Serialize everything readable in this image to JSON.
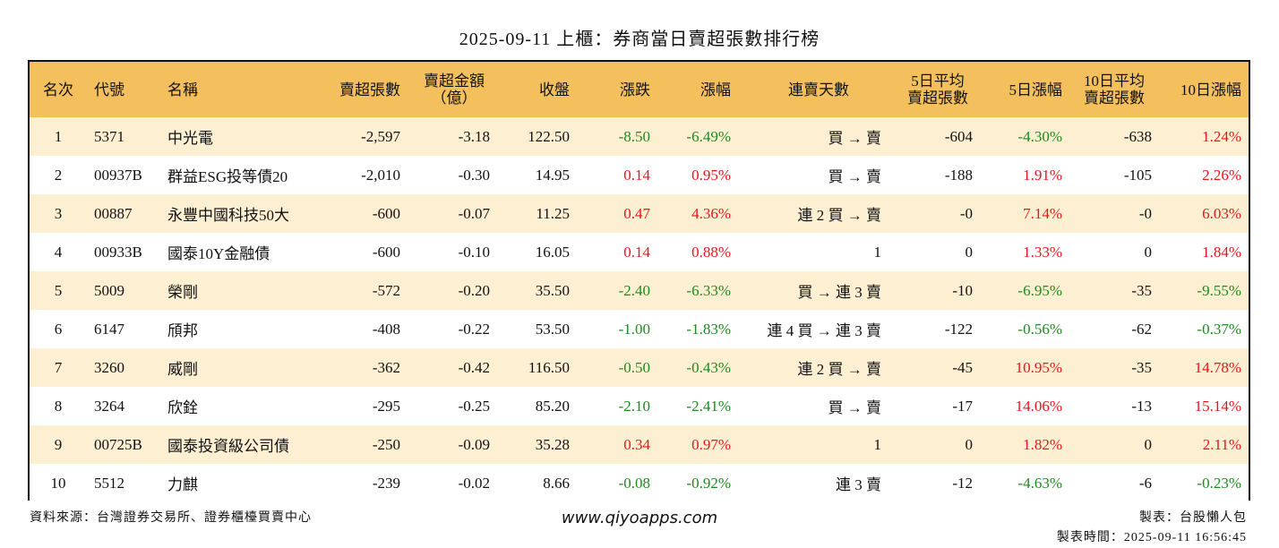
{
  "title": "2025-09-11 上櫃：券商當日賣超張數排行榜",
  "headers": {
    "rank": "名次",
    "code": "代號",
    "name": "名稱",
    "sell_lots": "賣超張數",
    "sell_amt_1": "賣超金額",
    "sell_amt_2": "（億）",
    "close": "收盤",
    "change": "漲跌",
    "change_pct": "漲幅",
    "days": "連賣天數",
    "avg5_1": "5日平均",
    "avg5_2": "賣超張數",
    "ret5": "5日漲幅",
    "avg10_1": "10日平均",
    "avg10_2": "賣超張數",
    "ret10": "10日漲幅"
  },
  "rows": [
    {
      "rank": "1",
      "code": "5371",
      "name": "中光電",
      "sell": "-2,597",
      "amt": "-3.18",
      "close": "122.50",
      "chg": "-8.50",
      "chg_color": "green",
      "pct": "-6.49%",
      "pct_color": "green",
      "days": "買 → 賣",
      "avg5": "-604",
      "r5": "-4.30%",
      "r5_color": "green",
      "avg10": "-638",
      "r10": "1.24%",
      "r10_color": "red"
    },
    {
      "rank": "2",
      "code": "00937B",
      "name": "群益ESG投等債20",
      "sell": "-2,010",
      "amt": "-0.30",
      "close": "14.95",
      "chg": "0.14",
      "chg_color": "red",
      "pct": "0.95%",
      "pct_color": "red",
      "days": "買 → 賣",
      "avg5": "-188",
      "r5": "1.91%",
      "r5_color": "red",
      "avg10": "-105",
      "r10": "2.26%",
      "r10_color": "red"
    },
    {
      "rank": "3",
      "code": "00887",
      "name": "永豐中國科技50大",
      "sell": "-600",
      "amt": "-0.07",
      "close": "11.25",
      "chg": "0.47",
      "chg_color": "red",
      "pct": "4.36%",
      "pct_color": "red",
      "days": "連 2 買 → 賣",
      "avg5": "-0",
      "r5": "7.14%",
      "r5_color": "red",
      "avg10": "-0",
      "r10": "6.03%",
      "r10_color": "red"
    },
    {
      "rank": "4",
      "code": "00933B",
      "name": "國泰10Y金融債",
      "sell": "-600",
      "amt": "-0.10",
      "close": "16.05",
      "chg": "0.14",
      "chg_color": "red",
      "pct": "0.88%",
      "pct_color": "red",
      "days": "1",
      "avg5": "0",
      "r5": "1.33%",
      "r5_color": "red",
      "avg10": "0",
      "r10": "1.84%",
      "r10_color": "red"
    },
    {
      "rank": "5",
      "code": "5009",
      "name": "榮剛",
      "sell": "-572",
      "amt": "-0.20",
      "close": "35.50",
      "chg": "-2.40",
      "chg_color": "green",
      "pct": "-6.33%",
      "pct_color": "green",
      "days": "買 → 連 3 賣",
      "avg5": "-10",
      "r5": "-6.95%",
      "r5_color": "green",
      "avg10": "-35",
      "r10": "-9.55%",
      "r10_color": "green"
    },
    {
      "rank": "6",
      "code": "6147",
      "name": "頎邦",
      "sell": "-408",
      "amt": "-0.22",
      "close": "53.50",
      "chg": "-1.00",
      "chg_color": "green",
      "pct": "-1.83%",
      "pct_color": "green",
      "days": "連 4 買 → 連 3 賣",
      "avg5": "-122",
      "r5": "-0.56%",
      "r5_color": "green",
      "avg10": "-62",
      "r10": "-0.37%",
      "r10_color": "green"
    },
    {
      "rank": "7",
      "code": "3260",
      "name": "威剛",
      "sell": "-362",
      "amt": "-0.42",
      "close": "116.50",
      "chg": "-0.50",
      "chg_color": "green",
      "pct": "-0.43%",
      "pct_color": "green",
      "days": "連 2 買 → 賣",
      "avg5": "-45",
      "r5": "10.95%",
      "r5_color": "red",
      "avg10": "-35",
      "r10": "14.78%",
      "r10_color": "red"
    },
    {
      "rank": "8",
      "code": "3264",
      "name": "欣銓",
      "sell": "-295",
      "amt": "-0.25",
      "close": "85.20",
      "chg": "-2.10",
      "chg_color": "green",
      "pct": "-2.41%",
      "pct_color": "green",
      "days": "買 → 賣",
      "avg5": "-17",
      "r5": "14.06%",
      "r5_color": "red",
      "avg10": "-13",
      "r10": "15.14%",
      "r10_color": "red"
    },
    {
      "rank": "9",
      "code": "00725B",
      "name": "國泰投資級公司債",
      "sell": "-250",
      "amt": "-0.09",
      "close": "35.28",
      "chg": "0.34",
      "chg_color": "red",
      "pct": "0.97%",
      "pct_color": "red",
      "days": "1",
      "avg5": "0",
      "r5": "1.82%",
      "r5_color": "red",
      "avg10": "0",
      "r10": "2.11%",
      "r10_color": "red"
    },
    {
      "rank": "10",
      "code": "5512",
      "name": "力麒",
      "sell": "-239",
      "amt": "-0.02",
      "close": "8.66",
      "chg": "-0.08",
      "chg_color": "green",
      "pct": "-0.92%",
      "pct_color": "green",
      "days": "連 3 賣",
      "avg5": "-12",
      "r5": "-4.63%",
      "r5_color": "green",
      "avg10": "-6",
      "r10": "-0.23%",
      "r10_color": "green"
    }
  ],
  "colors": {
    "header_bg": "#f4c05e",
    "odd_row_bg": "#fdf0d2",
    "up": "#e8141b",
    "down": "#1d8a1d"
  },
  "footer": {
    "source": "資料來源：台灣證券交易所、證券櫃檯買賣中心",
    "website": "www.qiyoapps.com",
    "maker": "製表：台股懶人包",
    "time": "製表時間：2025-09-11 16:56:45"
  }
}
